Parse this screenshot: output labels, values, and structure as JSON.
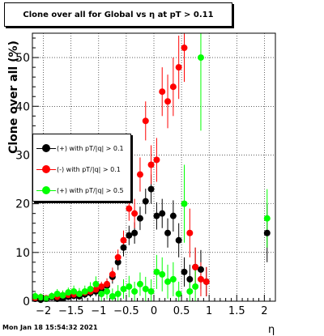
{
  "chart_data": {
    "type": "scatter",
    "title": "Clone  over all for Global vs   η at pT > 0.11",
    "xlabel": "η",
    "ylabel": "Clone  over all (%)",
    "xlim": [
      -2.2,
      2.2
    ],
    "ylim": [
      0,
      55
    ],
    "x_ticks": [
      -2,
      -1.5,
      -1,
      -0.5,
      0,
      0.5,
      1,
      1.5,
      2
    ],
    "x_tick_labels": [
      "−2",
      "−1.5",
      "−1",
      "−0.5",
      "0",
      "0.5",
      "1",
      "1.5",
      "2"
    ],
    "y_ticks": [
      0,
      10,
      20,
      30,
      40,
      50
    ],
    "y_tick_labels": [
      "0",
      "10",
      "20",
      "30",
      "40",
      "50"
    ],
    "grid": true,
    "legend_position": "middle-left",
    "series": [
      {
        "name": "(+) with pT/|q| > 0.1",
        "color": "#000000",
        "x": [
          -2.15,
          -2.05,
          -1.95,
          -1.85,
          -1.75,
          -1.65,
          -1.55,
          -1.45,
          -1.35,
          -1.25,
          -1.15,
          -1.05,
          -0.95,
          -0.85,
          -0.75,
          -0.65,
          -0.55,
          -0.45,
          -0.35,
          -0.25,
          -0.15,
          -0.05,
          0.05,
          0.15,
          0.25,
          0.35,
          0.45,
          0.55,
          0.65,
          0.75,
          0.85,
          0.95,
          2.05
        ],
        "y": [
          0.5,
          0.3,
          0.5,
          0.8,
          0.5,
          0.6,
          0.9,
          1.1,
          1.0,
          1.4,
          1.7,
          2.0,
          2.4,
          3.2,
          5.0,
          8.0,
          11.0,
          13.5,
          14.0,
          17.0,
          20.5,
          23.0,
          17.5,
          18.0,
          14.0,
          17.5,
          12.5,
          6.0,
          4.5,
          7.0,
          6.5,
          4.0,
          14.0
        ],
        "yerr": [
          0.6,
          0.5,
          0.5,
          0.6,
          0.5,
          0.5,
          0.6,
          0.7,
          0.7,
          0.8,
          0.9,
          1.0,
          1.0,
          1.2,
          1.4,
          1.6,
          1.8,
          2.0,
          2.2,
          2.4,
          2.6,
          3.0,
          2.8,
          3.0,
          3.0,
          3.2,
          3.5,
          3.0,
          3.0,
          4.0,
          4.0,
          3.0,
          6.0
        ]
      },
      {
        "name": "(-) with pT/|q| > 0.1",
        "color": "#ff0000",
        "x": [
          -2.15,
          -2.05,
          -1.95,
          -1.85,
          -1.75,
          -1.65,
          -1.55,
          -1.45,
          -1.35,
          -1.25,
          -1.15,
          -1.05,
          -0.95,
          -0.85,
          -0.75,
          -0.65,
          -0.55,
          -0.45,
          -0.35,
          -0.25,
          -0.15,
          -0.05,
          0.05,
          0.15,
          0.25,
          0.35,
          0.45,
          0.55,
          0.65,
          0.75,
          0.85,
          0.95
        ],
        "y": [
          0.7,
          0.8,
          0.6,
          1.0,
          0.9,
          1.2,
          1.3,
          1.4,
          1.5,
          1.8,
          2.0,
          2.4,
          3.0,
          3.5,
          5.5,
          9.0,
          12.5,
          19.0,
          18.0,
          26.0,
          37.0,
          28.0,
          29.0,
          43.0,
          41.0,
          44.0,
          48.0,
          52.0,
          14.0,
          7.0,
          4.5,
          4.0
        ],
        "yerr": [
          0.5,
          0.5,
          0.5,
          0.6,
          0.6,
          0.6,
          0.7,
          0.7,
          0.8,
          0.8,
          0.9,
          1.0,
          1.0,
          1.2,
          1.4,
          1.6,
          2.0,
          2.5,
          3.0,
          3.5,
          4.0,
          4.0,
          4.5,
          5.0,
          5.5,
          6.0,
          6.5,
          7.0,
          5.0,
          4.0,
          3.5,
          3.0
        ]
      },
      {
        "name": "(+) with pT/|q| > 0.5",
        "color": "#00ff00",
        "x": [
          -2.15,
          -2.05,
          -1.95,
          -1.85,
          -1.75,
          -1.65,
          -1.55,
          -1.45,
          -1.35,
          -1.25,
          -1.15,
          -1.05,
          -0.95,
          -0.85,
          -0.75,
          -0.65,
          -0.55,
          -0.45,
          -0.35,
          -0.25,
          -0.15,
          -0.05,
          0.05,
          0.15,
          0.25,
          0.35,
          0.45,
          0.55,
          0.65,
          0.75,
          0.85,
          2.05
        ],
        "y": [
          1.0,
          0.8,
          0.5,
          1.0,
          1.5,
          1.2,
          1.8,
          2.0,
          1.5,
          2.0,
          2.5,
          3.5,
          1.5,
          2.0,
          1.0,
          1.5,
          2.5,
          3.0,
          2.0,
          3.5,
          2.5,
          2.0,
          6.0,
          5.5,
          4.0,
          4.5,
          1.5,
          20.0,
          2.0,
          3.0,
          50.0,
          17.0
        ],
        "yerr": [
          0.8,
          0.8,
          0.7,
          0.8,
          1.0,
          1.0,
          1.0,
          1.2,
          1.2,
          1.2,
          1.4,
          1.6,
          1.5,
          1.6,
          1.6,
          1.8,
          2.0,
          2.2,
          2.0,
          2.4,
          2.5,
          2.5,
          3.5,
          3.5,
          3.5,
          3.5,
          2.5,
          8.0,
          3.0,
          4.0,
          15.0,
          6.0
        ]
      }
    ]
  },
  "footer": {
    "timestamp": "Mon Jan 18 15:54:32 2021"
  }
}
